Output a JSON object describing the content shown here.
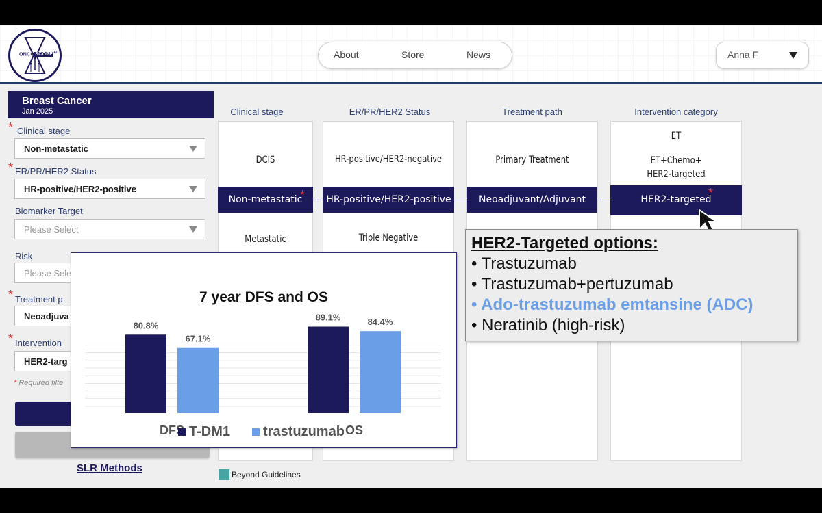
{
  "header": {
    "logo_text_a": "ONCO",
    "logo_text_b": "SCOPE",
    "logo_text_c": "AI",
    "nav": [
      "About",
      "Store",
      "News"
    ],
    "user_name": "Anna F"
  },
  "sidebar": {
    "title": "Breast Cancer",
    "date": "Jan 2025",
    "required_mark": "*",
    "fields": {
      "clinical_stage": {
        "label": "Clinical stage",
        "value": "Non-metastatic"
      },
      "status": {
        "label": "ER/PR/HER2 Status",
        "value": "HR-positive/HER2-positive"
      },
      "biomarker": {
        "label": "Biomarker Target",
        "placeholder": "Please Select"
      },
      "risk": {
        "label": "Risk",
        "placeholder": "Please Sele"
      },
      "treatment": {
        "label": "Treatment p",
        "value": "Neoadjuva"
      },
      "intervention": {
        "label": "Intervention",
        "value": "HER2-targ"
      }
    },
    "required_note": "Required filte",
    "slr_link": "SLR Methods"
  },
  "columns": {
    "clinical_stage": {
      "header": "Clinical stage",
      "options": [
        "DCIS",
        "Non-metastatic",
        "Metastatic"
      ]
    },
    "status": {
      "header": "ER/PR/HER2 Status",
      "options": [
        "HR-positive/HER2-negative",
        "HR-positive/HER2-positive",
        "Triple Negative"
      ]
    },
    "treatment_path": {
      "header": "Treatment path",
      "options": [
        "Primary Treatment",
        "Neoadjuvant/Adjuvant"
      ]
    },
    "intervention": {
      "header": "Intervention category",
      "options": [
        "ET",
        "ET+Chemo+",
        "HER2-targeted",
        "HER2-targeted"
      ]
    }
  },
  "legend": {
    "beyond": "Beyond Guidelines",
    "beyond_color": "#4aa3a3"
  },
  "popover": {
    "title": "HER2-Targeted options:",
    "items": [
      "• Trastuzumab",
      "• Trastuzumab+pertuzumab",
      "• Ado-trastuzumab emtansine (ADC)",
      "• Neratinib (high-risk)"
    ]
  },
  "colors": {
    "brand": "#1d1a5c",
    "accent": "#6a9fe8",
    "required": "#e53935"
  },
  "chart_data": {
    "type": "bar",
    "title": "7 year DFS and OS",
    "categories": [
      "DFS",
      "OS"
    ],
    "series": [
      {
        "name": "T-DM1",
        "values": [
          80.8,
          89.1
        ],
        "labels": [
          "80.8%",
          "89.1%"
        ],
        "color": "#1d1a5c"
      },
      {
        "name": "trastuzumab",
        "values": [
          67.1,
          84.4
        ],
        "labels": [
          "67.1%",
          "84.4%"
        ],
        "color": "#6a9fe8"
      }
    ],
    "ylim": [
      0,
      100
    ],
    "grid": true,
    "legend": "bottom"
  }
}
